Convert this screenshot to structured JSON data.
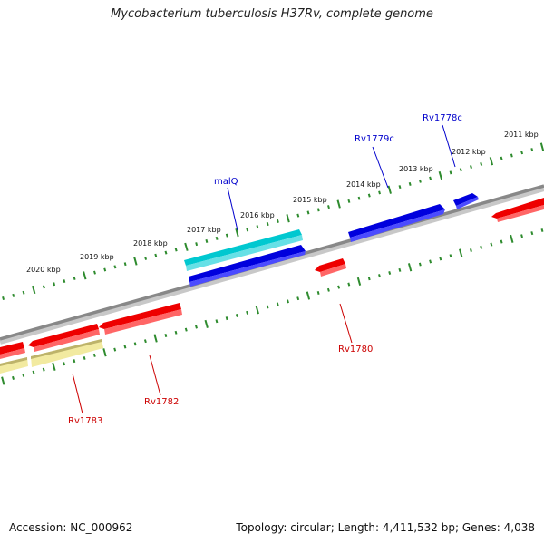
{
  "title": "Mycobacterium tuberculosis H37Rv, complete genome",
  "footer": {
    "accession_label": "Accession:",
    "accession": "NC_000962",
    "topology_label": "Topology:",
    "topology": "circular",
    "length_label": "Length:",
    "length": "4,411,532 bp",
    "genes_label": "Genes:",
    "genes": "4,038"
  },
  "colors": {
    "backbone": "#888888",
    "tick": "#2e8b2e",
    "forward_gene": "#0000dd",
    "reverse_gene": "#ee0000",
    "highlight_gene": "#00c8d0",
    "pseudo_gene": "#f2eaa0",
    "forward_label": "#0000cc",
    "reverse_label": "#cc0000"
  },
  "scale": {
    "unit": "kbp",
    "labels": [
      "2011 kbp",
      "2012 kbp",
      "2013 kbp",
      "2014 kbp",
      "2015 kbp",
      "2016 kbp",
      "2017 kbp",
      "2018 kbp",
      "2019 kbp",
      "2020 kbp"
    ]
  },
  "genes": [
    {
      "name": "Rv1778c",
      "strand": "forward"
    },
    {
      "name": "Rv1779c",
      "strand": "forward"
    },
    {
      "name": "malQ",
      "strand": "forward",
      "highlight": true
    },
    {
      "name": "Rv1780",
      "strand": "reverse"
    },
    {
      "name": "Rv1782",
      "strand": "reverse"
    },
    {
      "name": "Rv1783",
      "strand": "reverse"
    }
  ]
}
